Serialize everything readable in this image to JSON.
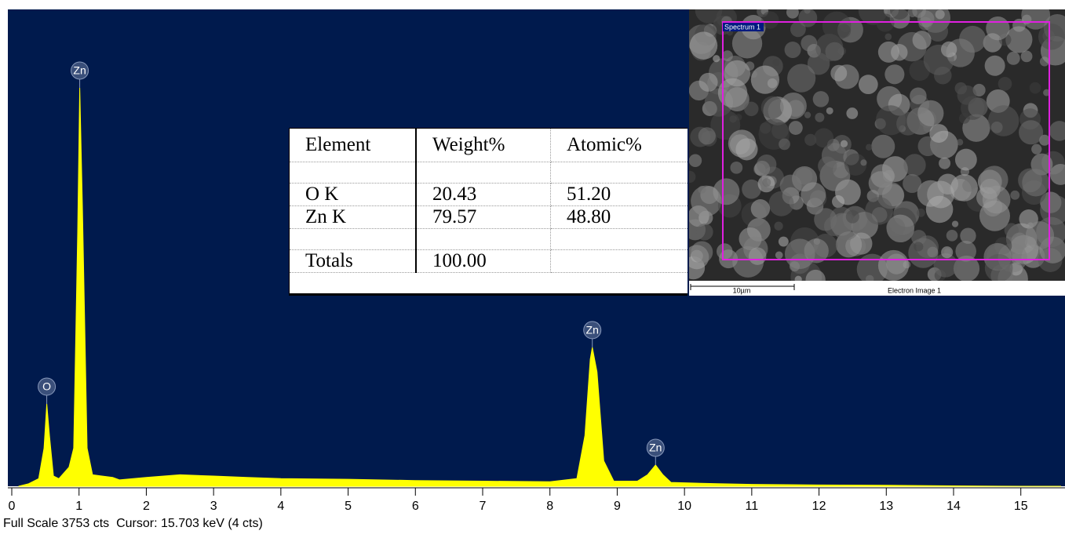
{
  "chart_data": {
    "type": "area",
    "footer": "Full Scale 3753 cts  Cursor: 15.703 keV (4 cts)",
    "color": "#ffff00",
    "background": "#001a4d",
    "x": [
      0.1,
      0.25,
      0.4,
      0.48,
      0.52,
      0.56,
      0.62,
      0.7,
      0.85,
      0.92,
      0.98,
      1.01,
      1.05,
      1.12,
      1.2,
      1.5,
      1.6,
      2.0,
      2.5,
      3.0,
      3.5,
      4.0,
      5.0,
      6.0,
      7.0,
      8.0,
      8.4,
      8.52,
      8.6,
      8.63,
      8.7,
      8.8,
      8.95,
      9.3,
      9.45,
      9.57,
      9.68,
      9.8,
      10.5,
      11,
      12,
      13,
      14,
      15,
      15.6
    ],
    "values": [
      0,
      20,
      60,
      300,
      648,
      400,
      80,
      60,
      150,
      300,
      2000,
      3136,
      2200,
      300,
      90,
      70,
      50,
      70,
      90,
      80,
      70,
      60,
      55,
      45,
      40,
      35,
      60,
      400,
      1000,
      1093,
      900,
      200,
      40,
      40,
      90,
      167,
      90,
      30,
      20,
      15,
      10,
      8,
      3,
      0,
      0
    ],
    "xlim": [
      0,
      15.68
    ],
    "ylim": [
      0,
      3753
    ],
    "xticks": [
      0,
      1,
      2,
      3,
      4,
      5,
      6,
      7,
      8,
      9,
      10,
      11,
      12,
      13,
      14,
      15
    ],
    "peaks": [
      {
        "label": "O",
        "x": 0.52,
        "y": 648
      },
      {
        "label": "Zn",
        "x": 1.01,
        "y": 3136
      },
      {
        "label": "Zn",
        "x": 8.63,
        "y": 1093
      },
      {
        "label": "Zn",
        "x": 9.57,
        "y": 167
      }
    ]
  },
  "table": {
    "header": [
      "Element",
      "Weight%",
      "Atomic%"
    ],
    "rows": [
      [
        "O K",
        "20.43",
        "51.20"
      ],
      [
        "Zn K",
        "79.57",
        "48.80"
      ],
      [
        "Totals",
        "100.00"
      ]
    ]
  },
  "image": {
    "spectrum_label": "Spectrum 1",
    "scale_label": "10µm",
    "caption": "Electron Image 1"
  }
}
